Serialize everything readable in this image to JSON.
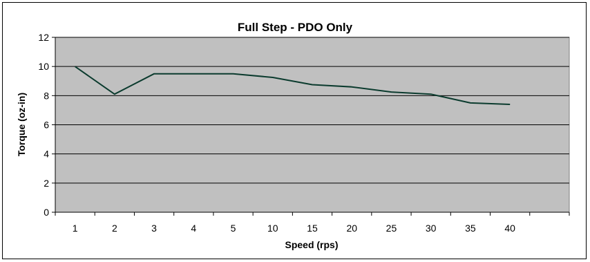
{
  "chart_data": {
    "type": "line",
    "title": "Full Step - PDO Only",
    "xlabel": "Speed (rps)",
    "ylabel": "Torque (oz-in)",
    "categories": [
      "1",
      "2",
      "3",
      "4",
      "5",
      "10",
      "15",
      "20",
      "25",
      "30",
      "35",
      "40"
    ],
    "series": [
      {
        "values": [
          10.0,
          8.1,
          9.5,
          9.5,
          9.5,
          9.25,
          8.75,
          8.6,
          8.25,
          8.1,
          7.5,
          7.4
        ]
      }
    ],
    "ylim": [
      0,
      12
    ],
    "yticks": [
      0,
      2,
      4,
      6,
      8,
      10,
      12
    ],
    "grid": true,
    "legend": "none",
    "colors": {
      "plot_background": "#c0c0c0",
      "line": "#0b3b2e",
      "gridline": "#000000"
    }
  }
}
